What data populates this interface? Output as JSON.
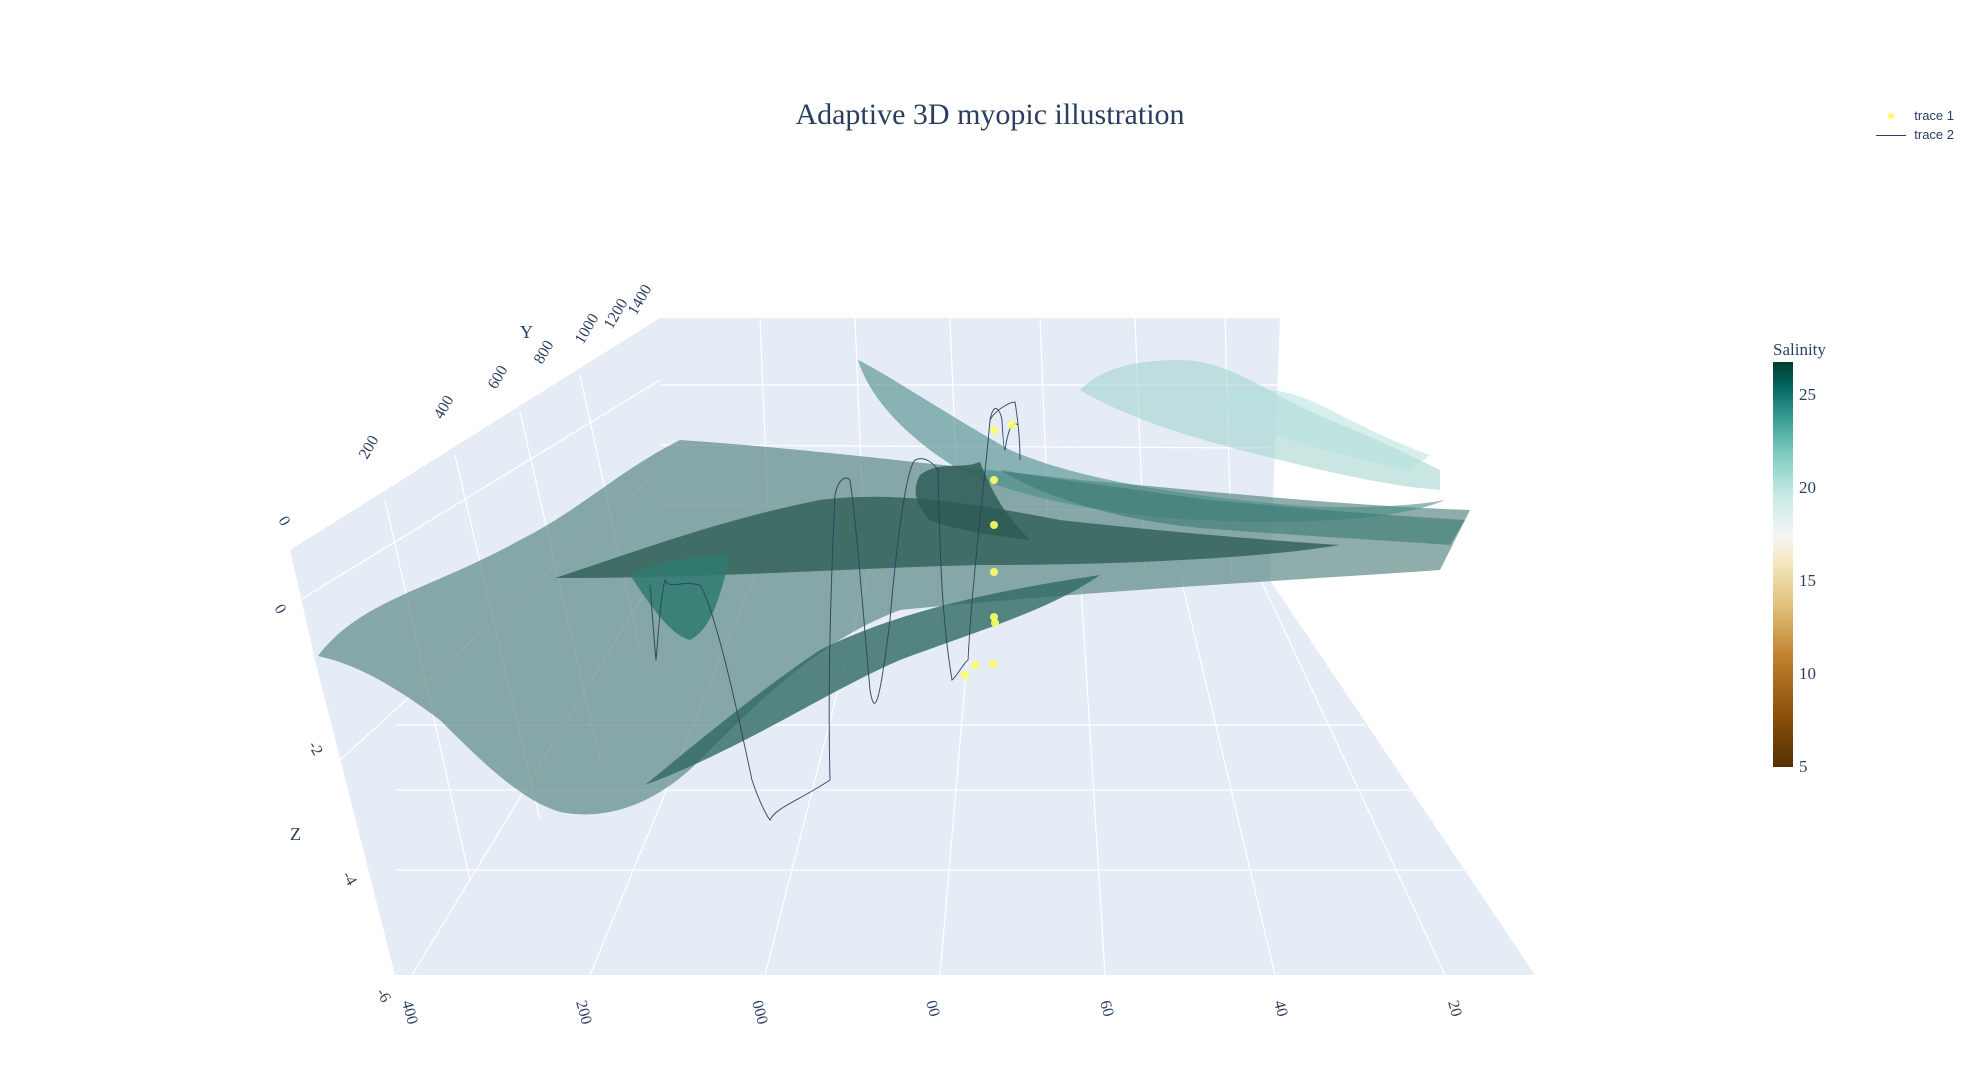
{
  "chart_data": {
    "type": "surface",
    "title": "Adaptive 3D myopic illustration",
    "legend": {
      "placement": "top-right",
      "items": [
        {
          "name": "trace 1",
          "mode": "markers",
          "color": "#ffff66"
        },
        {
          "name": "trace 2",
          "mode": "lines",
          "color": "#2a3f5f"
        }
      ]
    },
    "axes": {
      "x": {
        "tick_labels": [
          "400",
          "200",
          "000",
          "00",
          "60",
          "40",
          "20"
        ]
      },
      "y": {
        "title": "Y",
        "tick_labels": [
          "0",
          "200",
          "400",
          "600",
          "800",
          "1000",
          "1200",
          "1400"
        ]
      },
      "z": {
        "title": "Z",
        "tick_labels": [
          "0",
          "-2",
          "-4",
          "-6"
        ]
      }
    },
    "colorbar": {
      "title": "Salinity",
      "ticks": [
        5,
        10,
        15,
        20,
        25
      ],
      "range": [
        5,
        26.8
      ],
      "colorscale": [
        "#543005",
        "#8c510a",
        "#bf812d",
        "#dfc27d",
        "#f6e8c3",
        "#f5f5f5",
        "#c7eae5",
        "#80cdc1",
        "#35978f",
        "#01665e",
        "#003c30"
      ]
    },
    "background_color": "#e5ecf6",
    "gridlines": true
  }
}
